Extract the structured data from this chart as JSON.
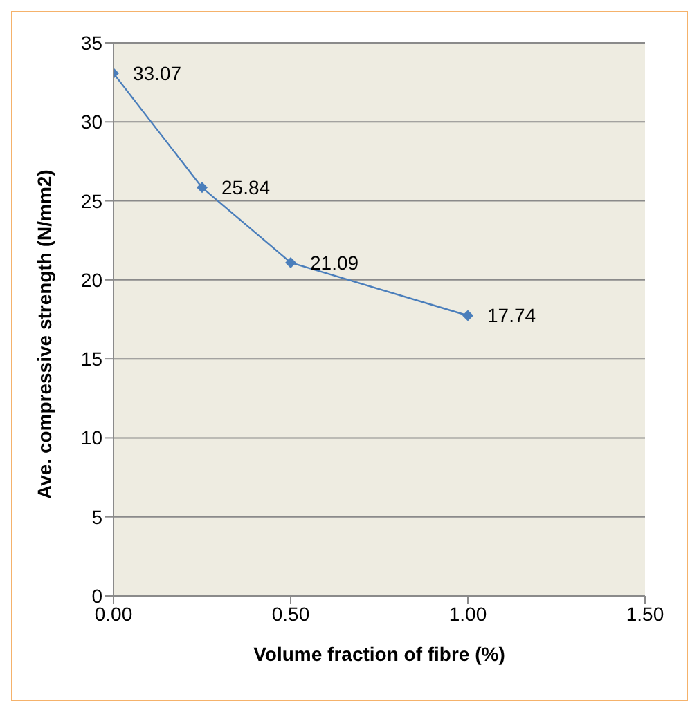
{
  "chart_data": {
    "type": "line",
    "xlabel": "Volume fraction of fibre (%)",
    "ylabel": "Ave. compressive strength (N/mm2)",
    "x": [
      0,
      0.25,
      0.5,
      1.0
    ],
    "series": [
      {
        "color": "#4a7ebb",
        "values": [
          33.07,
          25.84,
          21.09,
          17.74
        ]
      }
    ],
    "xlim": [
      0,
      1.5
    ],
    "xticks": [
      {
        "value": 0,
        "label": "0.00"
      },
      {
        "value": 0.5,
        "label": "0.50"
      },
      {
        "value": 1,
        "label": "1.00"
      },
      {
        "value": 1.5,
        "label": "1.50"
      }
    ],
    "ylim": [
      0,
      35
    ],
    "yticks": [
      0,
      5,
      10,
      15,
      20,
      25,
      30,
      35
    ],
    "grid": "y",
    "legend": false,
    "marker": "diamond",
    "line_style": "solid",
    "data_labels": true
  }
}
